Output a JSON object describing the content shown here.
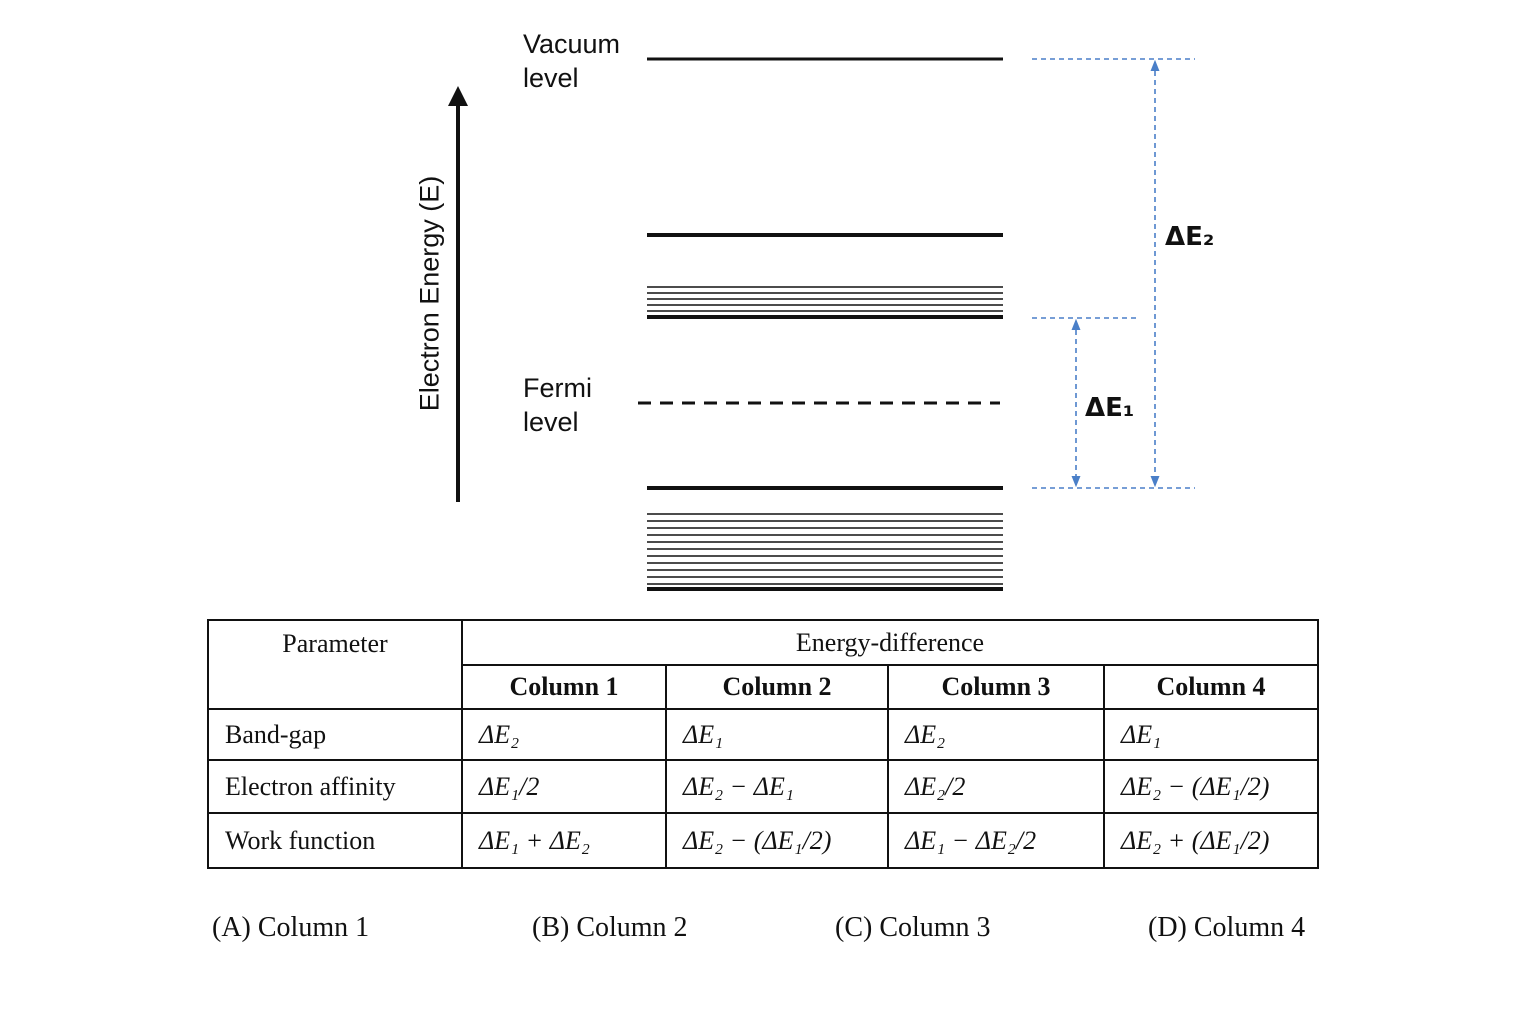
{
  "diagram": {
    "axis_label": "Electron Energy (E)",
    "levels": {
      "vacuum": "Vacuum level",
      "fermi": "Fermi level"
    },
    "arrows": {
      "delta_e2": "ΔE₂",
      "delta_e1": "ΔE₁"
    }
  },
  "table": {
    "header": {
      "parameter": "Parameter",
      "group": "Energy-difference",
      "columns": [
        "Column 1",
        "Column 2",
        "Column 3",
        "Column 4"
      ]
    },
    "rows": [
      [
        "Band-gap",
        "ΔE₂",
        "ΔE₁",
        "ΔE₂",
        "ΔE₁"
      ],
      [
        "Electron affinity",
        "ΔE₁/2",
        "ΔE₂ − ΔE₁",
        "ΔE₂/2",
        "ΔE₂ − (ΔE₁/2)"
      ],
      [
        "Work function",
        "ΔE₁ + ΔE₂",
        "ΔE₂ − (ΔE₁/2)",
        "ΔE₁ − ΔE₂/2",
        "ΔE₂ + (ΔE₁/2)"
      ]
    ]
  },
  "options": [
    "(A) Column 1",
    "(B) Column 2",
    "(C) Column 3",
    "(D) Column 4"
  ]
}
